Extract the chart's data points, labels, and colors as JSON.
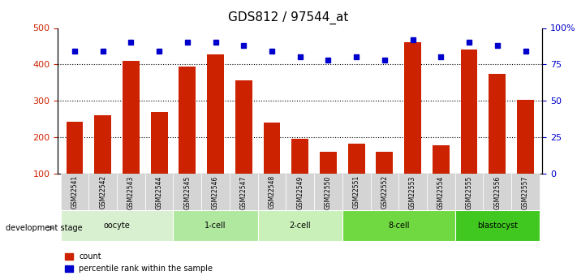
{
  "title": "GDS812 / 97544_at",
  "samples": [
    "GSM22541",
    "GSM22542",
    "GSM22543",
    "GSM22544",
    "GSM22545",
    "GSM22546",
    "GSM22547",
    "GSM22548",
    "GSM22549",
    "GSM22550",
    "GSM22551",
    "GSM22552",
    "GSM22553",
    "GSM22554",
    "GSM22555",
    "GSM22556",
    "GSM22557"
  ],
  "counts": [
    243,
    260,
    410,
    270,
    393,
    428,
    357,
    241,
    195,
    160,
    183,
    160,
    460,
    178,
    440,
    375,
    303
  ],
  "percentiles": [
    84,
    84,
    90,
    84,
    90,
    90,
    88,
    84,
    80,
    78,
    80,
    78,
    92,
    80,
    90,
    88,
    84
  ],
  "stages": [
    {
      "label": "oocyte",
      "start": 0,
      "end": 4,
      "color": "#d8f0d0"
    },
    {
      "label": "1-cell",
      "start": 4,
      "end": 7,
      "color": "#b0e8a0"
    },
    {
      "label": "2-cell",
      "start": 7,
      "end": 10,
      "color": "#c8f0b8"
    },
    {
      "label": "8-cell",
      "start": 10,
      "end": 14,
      "color": "#70d840"
    },
    {
      "label": "blastocyst",
      "start": 14,
      "end": 17,
      "color": "#40c820"
    }
  ],
  "bar_color": "#cc2200",
  "dot_color": "#0000cc",
  "ylim_left": [
    100,
    500
  ],
  "ylim_right": [
    0,
    100
  ],
  "yticks_left": [
    100,
    200,
    300,
    400,
    500
  ],
  "yticks_right": [
    0,
    25,
    50,
    75,
    100
  ],
  "grid_lines": [
    200,
    300,
    400
  ],
  "tick_label_color_left": "#cc2200",
  "tick_label_color_right": "#0000cc",
  "bg_color": "#ffffff",
  "plot_bg": "#ffffff"
}
